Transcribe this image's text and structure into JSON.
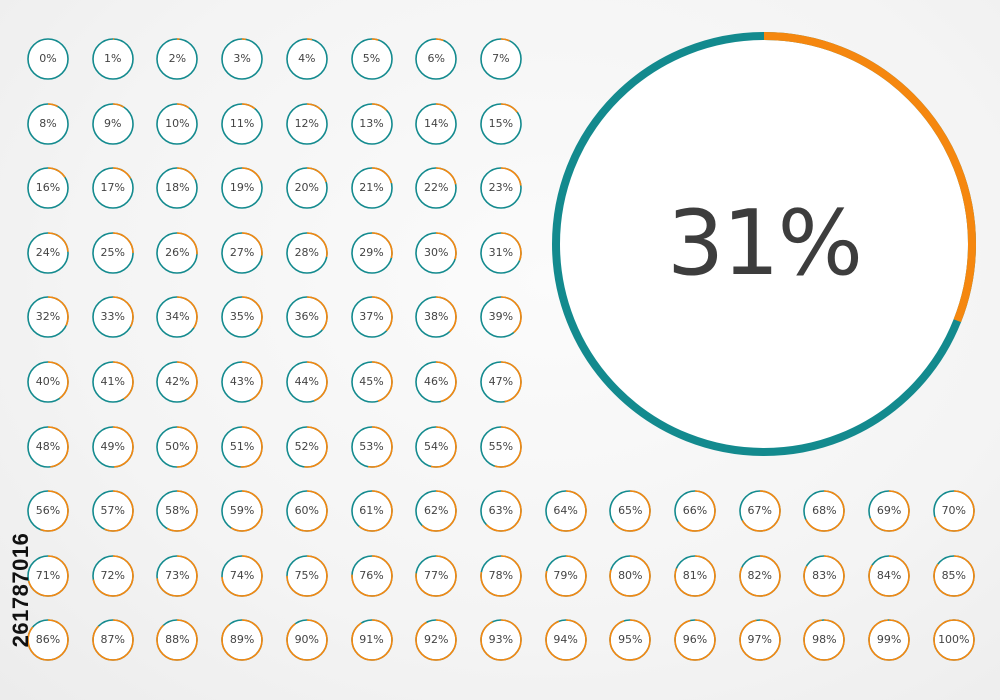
{
  "colors": {
    "progress": "#f5870f",
    "remaining": "#138a8e",
    "text": "#444444"
  },
  "featured": {
    "value": 31,
    "label": "31%"
  },
  "gauges": [
    0,
    1,
    2,
    3,
    4,
    5,
    6,
    7,
    8,
    9,
    10,
    11,
    12,
    13,
    14,
    15,
    16,
    17,
    18,
    19,
    20,
    21,
    22,
    23,
    24,
    25,
    26,
    27,
    28,
    29,
    30,
    31,
    32,
    33,
    34,
    35,
    36,
    37,
    38,
    39,
    40,
    41,
    42,
    43,
    44,
    45,
    46,
    47,
    48,
    49,
    50,
    51,
    52,
    53,
    54,
    55,
    56,
    57,
    58,
    59,
    60,
    61,
    62,
    63,
    64,
    65,
    66,
    67,
    68,
    69,
    70,
    71,
    72,
    73,
    74,
    75,
    76,
    77,
    78,
    79,
    80,
    81,
    82,
    83,
    84,
    85,
    86,
    87,
    88,
    89,
    90,
    91,
    92,
    93,
    94,
    95,
    96,
    97,
    98,
    99,
    100
  ],
  "labels": [
    "0%",
    "1%",
    "2%",
    "3%",
    "4%",
    "5%",
    "6%",
    "7%",
    "8%",
    "9%",
    "10%",
    "11%",
    "12%",
    "13%",
    "14%",
    "15%",
    "16%",
    "17%",
    "18%",
    "19%",
    "20%",
    "21%",
    "22%",
    "23%",
    "24%",
    "25%",
    "26%",
    "27%",
    "28%",
    "29%",
    "30%",
    "31%",
    "32%",
    "33%",
    "34%",
    "35%",
    "36%",
    "37%",
    "38%",
    "39%",
    "40%",
    "41%",
    "42%",
    "43%",
    "44%",
    "45%",
    "46%",
    "47%",
    "48%",
    "49%",
    "50%",
    "51%",
    "52%",
    "53%",
    "54%",
    "55%",
    "56%",
    "57%",
    "58%",
    "59%",
    "60%",
    "61%",
    "62%",
    "63%",
    "64%",
    "65%",
    "66%",
    "67%",
    "68%",
    "69%",
    "70%",
    "71%",
    "72%",
    "73%",
    "74%",
    "75%",
    "76%",
    "77%",
    "78%",
    "79%",
    "80%",
    "81%",
    "82%",
    "83%",
    "84%",
    "85%",
    "86%",
    "87%",
    "88%",
    "89%",
    "90%",
    "91%",
    "92%",
    "93%",
    "94%",
    "95%",
    "96%",
    "97%",
    "98%",
    "99%",
    "100%"
  ],
  "stock_id": "261787016"
}
